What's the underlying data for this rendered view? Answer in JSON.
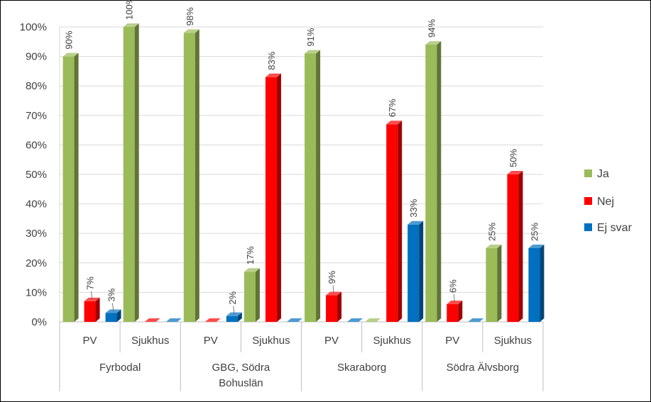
{
  "chart_data": {
    "type": "bar",
    "title": "",
    "xlabel": "",
    "ylabel": "",
    "ylim": [
      0,
      100
    ],
    "y_ticks": [
      "0%",
      "10%",
      "20%",
      "30%",
      "40%",
      "50%",
      "60%",
      "70%",
      "80%",
      "90%",
      "100%"
    ],
    "grid": true,
    "legend_position": "right",
    "groups": [
      {
        "name": "Fyrbodal",
        "name_lines": [
          "Fyrbodal"
        ],
        "categories": [
          "PV",
          "Sjukhus"
        ]
      },
      {
        "name": "GBG, Södra Bohuslän",
        "name_lines": [
          "GBG, Södra",
          "Bohuslän"
        ],
        "categories": [
          "PV",
          "Sjukhus"
        ]
      },
      {
        "name": "Skaraborg",
        "name_lines": [
          "Skaraborg"
        ],
        "categories": [
          "PV",
          "Sjukhus"
        ]
      },
      {
        "name": "Södra Älvsborg",
        "name_lines": [
          "Södra Älvsborg"
        ],
        "categories": [
          "PV",
          "Sjukhus"
        ]
      }
    ],
    "series": [
      {
        "name": "Ja",
        "color": "#9BBB59",
        "values": [
          90,
          100,
          98,
          17,
          91,
          0,
          94,
          25
        ],
        "labels": [
          "90%",
          "100%",
          "98%",
          "17%",
          "91%",
          "",
          "94%",
          "25%"
        ]
      },
      {
        "name": "Nej",
        "color": "#FF0000",
        "values": [
          7,
          0,
          0,
          83,
          9,
          67,
          6,
          50
        ],
        "labels": [
          "7%",
          "",
          "",
          "83%",
          "9%",
          "67%",
          "6%",
          "50%"
        ]
      },
      {
        "name": "Ej svar",
        "color": "#0070C0",
        "values": [
          3,
          0,
          2,
          0,
          0,
          33,
          0,
          25
        ],
        "labels": [
          "3%",
          "",
          "2%",
          "",
          "",
          "33%",
          "",
          "25%"
        ]
      }
    ]
  }
}
